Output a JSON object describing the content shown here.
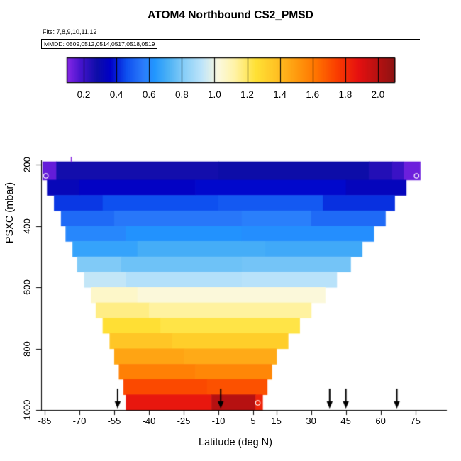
{
  "annotations": {
    "flights": "Flts: 7,8,9,10,11,12",
    "mmdd": "MMDD: 0509,0512,0514,0517,0518,0519"
  },
  "chart_data": {
    "type": "heatmap",
    "title": "ATOM4 Northbound CS2_PMSD",
    "xlabel": "Latitude (deg N)",
    "ylabel": "PSXC (mbar)",
    "x_ticks": [
      -85,
      -70,
      -55,
      -40,
      -25,
      -10,
      5,
      15,
      30,
      45,
      60,
      75
    ],
    "y_ticks": [
      200,
      400,
      600,
      800,
      1000
    ],
    "x_range": [
      -86.5,
      88
    ],
    "y_range": [
      190,
      1000
    ],
    "y_axis_reversed": true,
    "legend_position": "top",
    "grid": false,
    "colorbar": {
      "min": 0.1,
      "max": 2.1,
      "ticks": [
        0.2,
        0.4,
        0.6,
        0.8,
        1.0,
        1.2,
        1.4,
        1.6,
        1.8,
        2.0
      ]
    },
    "colormap": [
      {
        "v": 0.1,
        "c": "#8326E6"
      },
      {
        "v": 0.18,
        "c": "#4513CC"
      },
      {
        "v": 0.28,
        "c": "#0D0DA8"
      },
      {
        "v": 0.36,
        "c": "#0000C8"
      },
      {
        "v": 0.46,
        "c": "#0E50F0"
      },
      {
        "v": 0.56,
        "c": "#2B7BFA"
      },
      {
        "v": 0.63,
        "c": "#2196FF"
      },
      {
        "v": 0.72,
        "c": "#4FB3F5"
      },
      {
        "v": 0.82,
        "c": "#8CD0F8"
      },
      {
        "v": 0.92,
        "c": "#BDE4FA"
      },
      {
        "v": 1.02,
        "c": "#FBF9DF"
      },
      {
        "v": 1.12,
        "c": "#FFF3A8"
      },
      {
        "v": 1.25,
        "c": "#FFE135"
      },
      {
        "v": 1.37,
        "c": "#FFC425"
      },
      {
        "v": 1.5,
        "c": "#FF9A0E"
      },
      {
        "v": 1.62,
        "c": "#FF7300"
      },
      {
        "v": 1.75,
        "c": "#FA3C00"
      },
      {
        "v": 1.88,
        "c": "#E51010"
      },
      {
        "v": 2.1,
        "c": "#8E1212"
      }
    ],
    "bands": [
      {
        "p_top": 190,
        "p_bot": 250,
        "cells": [
          {
            "lat0": -86,
            "lat1": -80,
            "v": 0.14
          },
          {
            "lat0": -80,
            "lat1": -10,
            "v": 0.27
          },
          {
            "lat0": -10,
            "lat1": 55,
            "v": 0.28
          },
          {
            "lat0": 55,
            "lat1": 65,
            "v": 0.24
          },
          {
            "lat0": 65,
            "lat1": 70,
            "v": 0.2
          },
          {
            "lat0": 70,
            "lat1": 77,
            "v": 0.13
          }
        ]
      },
      {
        "p_top": 250,
        "p_bot": 300,
        "cells": [
          {
            "lat0": -84,
            "lat1": -70,
            "v": 0.32
          },
          {
            "lat0": -70,
            "lat1": -20,
            "v": 0.35
          },
          {
            "lat0": -20,
            "lat1": 45,
            "v": 0.37
          },
          {
            "lat0": 45,
            "lat1": 71,
            "v": 0.33
          }
        ]
      },
      {
        "p_top": 300,
        "p_bot": 350,
        "cells": [
          {
            "lat0": -81,
            "lat1": -60,
            "v": 0.43
          },
          {
            "lat0": -60,
            "lat1": -10,
            "v": 0.46
          },
          {
            "lat0": -10,
            "lat1": 35,
            "v": 0.48
          },
          {
            "lat0": 35,
            "lat1": 66,
            "v": 0.42
          }
        ]
      },
      {
        "p_top": 350,
        "p_bot": 400,
        "cells": [
          {
            "lat0": -78,
            "lat1": -55,
            "v": 0.52
          },
          {
            "lat0": -55,
            "lat1": 0,
            "v": 0.55
          },
          {
            "lat0": 0,
            "lat1": 30,
            "v": 0.57
          },
          {
            "lat0": 30,
            "lat1": 62,
            "v": 0.52
          }
        ]
      },
      {
        "p_top": 400,
        "p_bot": 450,
        "cells": [
          {
            "lat0": -76,
            "lat1": -50,
            "v": 0.59
          },
          {
            "lat0": -50,
            "lat1": 0,
            "v": 0.62
          },
          {
            "lat0": 0,
            "lat1": 57,
            "v": 0.61
          }
        ]
      },
      {
        "p_top": 450,
        "p_bot": 500,
        "cells": [
          {
            "lat0": -73,
            "lat1": -45,
            "v": 0.67
          },
          {
            "lat0": -45,
            "lat1": 10,
            "v": 0.7
          },
          {
            "lat0": 10,
            "lat1": 52,
            "v": 0.69
          }
        ]
      },
      {
        "p_top": 500,
        "p_bot": 550,
        "cells": [
          {
            "lat0": -71,
            "lat1": -52,
            "v": 0.8
          },
          {
            "lat0": -52,
            "lat1": 0,
            "v": 0.77
          },
          {
            "lat0": 0,
            "lat1": 47,
            "v": 0.78
          }
        ]
      },
      {
        "p_top": 550,
        "p_bot": 600,
        "cells": [
          {
            "lat0": -68,
            "lat1": -50,
            "v": 0.93
          },
          {
            "lat0": -50,
            "lat1": 0,
            "v": 0.9
          },
          {
            "lat0": 0,
            "lat1": 41,
            "v": 0.91
          }
        ]
      },
      {
        "p_top": 600,
        "p_bot": 650,
        "cells": [
          {
            "lat0": -65,
            "lat1": -45,
            "v": 1.06
          },
          {
            "lat0": -45,
            "lat1": 36,
            "v": 1.03
          }
        ]
      },
      {
        "p_top": 650,
        "p_bot": 700,
        "cells": [
          {
            "lat0": -63,
            "lat1": -40,
            "v": 1.16
          },
          {
            "lat0": -40,
            "lat1": 30,
            "v": 1.13
          }
        ]
      },
      {
        "p_top": 700,
        "p_bot": 750,
        "cells": [
          {
            "lat0": -60,
            "lat1": -35,
            "v": 1.26
          },
          {
            "lat0": -35,
            "lat1": 25,
            "v": 1.23
          }
        ]
      },
      {
        "p_top": 750,
        "p_bot": 800,
        "cells": [
          {
            "lat0": -57,
            "lat1": -30,
            "v": 1.36
          },
          {
            "lat0": -30,
            "lat1": 20,
            "v": 1.33
          }
        ]
      },
      {
        "p_top": 800,
        "p_bot": 850,
        "cells": [
          {
            "lat0": -55,
            "lat1": -25,
            "v": 1.47
          },
          {
            "lat0": -25,
            "lat1": 15,
            "v": 1.45
          }
        ]
      },
      {
        "p_top": 850,
        "p_bot": 900,
        "cells": [
          {
            "lat0": -53,
            "lat1": -20,
            "v": 1.58
          },
          {
            "lat0": -20,
            "lat1": 13,
            "v": 1.56
          }
        ]
      },
      {
        "p_top": 900,
        "p_bot": 950,
        "cells": [
          {
            "lat0": -51,
            "lat1": -15,
            "v": 1.72
          },
          {
            "lat0": -15,
            "lat1": 11,
            "v": 1.7
          }
        ]
      },
      {
        "p_top": 950,
        "p_bot": 1000,
        "cells": [
          {
            "lat0": -50,
            "lat1": -13,
            "v": 1.86
          },
          {
            "lat0": -13,
            "lat1": 6,
            "v": 2.0
          },
          {
            "lat0": 6,
            "lat1": 9,
            "v": 1.82
          }
        ]
      }
    ],
    "arrow_lats": [
      -53.5,
      -9,
      38,
      45,
      67
    ],
    "markers": [
      {
        "lat": -84.5,
        "p": 237
      },
      {
        "lat": 75.5,
        "p": 237
      },
      {
        "lat": 7,
        "p": 977
      }
    ],
    "flag_tick": {
      "lat": -73.5,
      "color": "#8A2BE2"
    }
  }
}
